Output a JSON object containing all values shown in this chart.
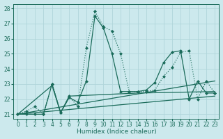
{
  "xlabel": "Humidex (Indice chaleur)",
  "background_color": "#cce9ed",
  "grid_color": "#b0d5da",
  "line_color": "#1a6b5a",
  "xlim": [
    -0.5,
    23.5
  ],
  "ylim": [
    20.7,
    28.3
  ],
  "yticks": [
    21,
    22,
    23,
    24,
    25,
    26,
    27,
    28
  ],
  "xticks": [
    0,
    1,
    2,
    3,
    4,
    5,
    6,
    7,
    8,
    9,
    10,
    11,
    12,
    13,
    14,
    15,
    16,
    17,
    18,
    19,
    20,
    21,
    22,
    23
  ],
  "line1_x": [
    0,
    1,
    2,
    3,
    4,
    5,
    6,
    7,
    8,
    9,
    10,
    11,
    12,
    13,
    14,
    15,
    16,
    17,
    18,
    19,
    20,
    21,
    22,
    23
  ],
  "line1_y": [
    21.0,
    21.2,
    21.5,
    21.0,
    23.0,
    21.1,
    22.2,
    21.5,
    25.4,
    27.8,
    26.8,
    26.5,
    25.0,
    22.5,
    22.5,
    22.5,
    22.6,
    23.5,
    24.1,
    25.1,
    25.2,
    22.0,
    23.2,
    22.4
  ],
  "line2_x": [
    0,
    1,
    2,
    3,
    4,
    5,
    6,
    7,
    8,
    9,
    10,
    11,
    12,
    13,
    14,
    15,
    16,
    17,
    18,
    19,
    20,
    21,
    22,
    23
  ],
  "line2_y": [
    21.0,
    21.0,
    21.0,
    21.0,
    23.0,
    21.1,
    22.1,
    21.8,
    23.2,
    27.5,
    26.7,
    25.0,
    22.5,
    22.5,
    22.5,
    22.6,
    23.1,
    24.4,
    25.1,
    25.2,
    22.0,
    23.2,
    22.4,
    22.4
  ],
  "line3_x": [
    0,
    4,
    5,
    6,
    14,
    23
  ],
  "line3_y": [
    21.0,
    22.9,
    21.1,
    22.2,
    22.4,
    22.5
  ],
  "line4_x": [
    0,
    23
  ],
  "line4_y": [
    21.0,
    23.2
  ],
  "line5_x": [
    0,
    23
  ],
  "line5_y": [
    21.0,
    22.2
  ]
}
